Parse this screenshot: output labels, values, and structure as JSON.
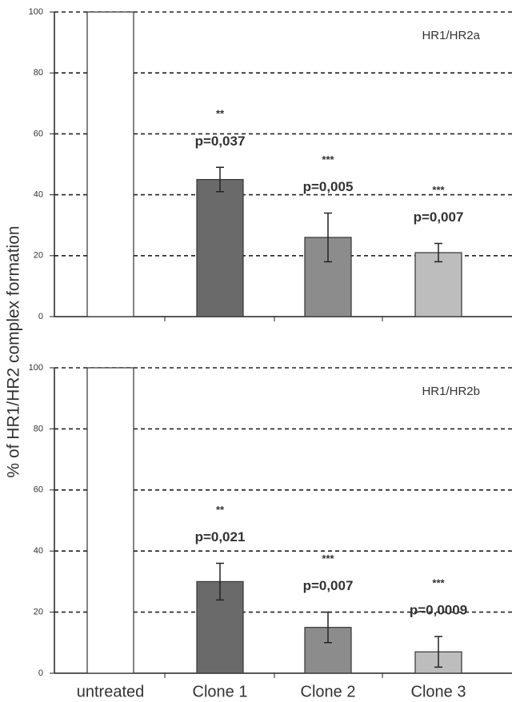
{
  "chart_data": [
    {
      "type": "bar",
      "title": "HR1/HR2a",
      "ylabel": "% of HR1/HR2 complex formation",
      "categories": [
        null,
        null,
        null,
        null
      ],
      "values": [
        100,
        45,
        26,
        21
      ],
      "errors": [
        0,
        4,
        8,
        3
      ],
      "colors": [
        "#ffffff",
        "#6a6a6a",
        "#8c8c8c",
        "#bdbdbd"
      ],
      "significance": [
        null,
        "**",
        "***",
        "***"
      ],
      "p_values": [
        null,
        "p=0,037",
        "p=0,005",
        "p=0,007"
      ],
      "ylim": [
        0,
        100
      ],
      "yticks": [
        0,
        20,
        40,
        60,
        80,
        100
      ],
      "grid": true
    },
    {
      "type": "bar",
      "title": "HR1/HR2b",
      "categories": [
        "untreated",
        "Clone 1",
        "Clone 2",
        "Clone 3"
      ],
      "values": [
        100,
        30,
        15,
        7
      ],
      "errors": [
        0,
        6,
        5,
        5
      ],
      "colors": [
        "#ffffff",
        "#6a6a6a",
        "#8c8c8c",
        "#bdbdbd"
      ],
      "significance": [
        null,
        "**",
        "***",
        "***"
      ],
      "p_values": [
        null,
        "p=0,021",
        "p=0,007",
        "p=0,0009"
      ],
      "ylim": [
        0,
        100
      ],
      "yticks": [
        0,
        20,
        40,
        60,
        80,
        100
      ],
      "grid": true
    }
  ]
}
